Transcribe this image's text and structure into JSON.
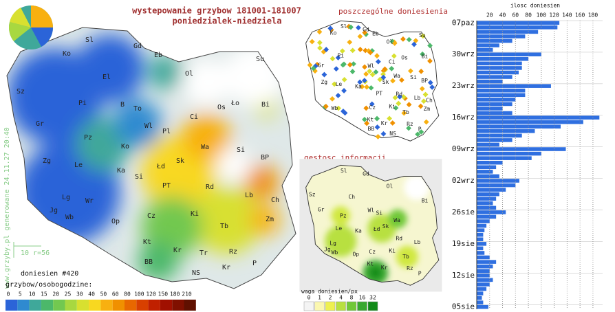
{
  "header": {
    "title": "wystepowanie grzybow 181001-181007",
    "subtitle": "poniedzialek-niedziela"
  },
  "main_map": {
    "labels": [
      "Sl",
      "Gd",
      "Eb",
      "Su",
      "Ko",
      "Ol",
      "El",
      "Sz",
      "Pi",
      "B",
      "To",
      "Ło",
      "Os",
      "Bi",
      "Ci",
      "Gr",
      "Wl",
      "Pz",
      "Pl",
      "Ko",
      "Wa",
      "Si",
      "Zg",
      "Le",
      "Ka",
      "Sk",
      "Łd",
      "BP",
      "Si",
      "PT",
      "Rd",
      "Lg",
      "Wr",
      "Lb",
      "Ch",
      "Jg",
      "Wb",
      "Op",
      "Cz",
      "Ki",
      "Tb",
      "Zm",
      "Kt",
      "Kr",
      "Rz",
      "Tr",
      "BB",
      "NS",
      "Kr",
      "P"
    ],
    "side_note": "www.grzyby.pl generowane 24.11.27 20:40",
    "scale_note": "10 r=56",
    "reports": "doniesien #420"
  },
  "legend": {
    "title": "grzybow/osobogodzine:",
    "ticks": [
      0,
      5,
      10,
      15,
      20,
      25,
      30,
      40,
      50,
      60,
      80,
      100,
      120,
      150,
      180,
      210
    ],
    "colors": [
      "#2b64d8",
      "#2f8ad0",
      "#3fa89a",
      "#4cb86a",
      "#72c850",
      "#a8d840",
      "#d8e030",
      "#f8d820",
      "#f8b010",
      "#f09000",
      "#e86800",
      "#d84000",
      "#c02000",
      "#a01000",
      "#801000",
      "#601000"
    ]
  },
  "reports_map": {
    "title": "poszczególne doniesienia",
    "labels": [
      "Sl",
      "Gd",
      "Ko",
      "Eb",
      "Su",
      "Ol",
      "Pi",
      "Gr",
      "Ci",
      "Os",
      "Bi",
      "Wl",
      "Le",
      "Zg",
      "Sk",
      "Wa",
      "Si",
      "Ka",
      "PT",
      "BP",
      "Rd",
      "Lb",
      "Ch",
      "Wb",
      "Cz",
      "Ki",
      "Tb",
      "Zm",
      "Kt",
      "BB",
      "Kr",
      "Rz",
      "NS",
      "P"
    ]
  },
  "density_map": {
    "title": "gestosc informacji",
    "labels": [
      "Sl",
      "Gd",
      "Ol",
      "Ch",
      "Sz",
      "Bi",
      "Gr",
      "Pz",
      "Wl",
      "Si",
      "Wa",
      "Le",
      "Ka",
      "Sk",
      "Łd",
      "Rd",
      "Lg",
      "Wb",
      "Jg",
      "Op",
      "Cz",
      "Ki",
      "Lb",
      "Kt",
      "Tb",
      "Kr",
      "Rz",
      "P"
    ],
    "legend_title": "waga doniesien/px",
    "ticks": [
      0,
      1,
      2,
      4,
      8,
      16,
      32
    ],
    "colors": [
      "#f4f4f4",
      "#fbf7b0",
      "#eef050",
      "#b8e040",
      "#70c838",
      "#38a830",
      "#108a18"
    ]
  },
  "chart_data": {
    "type": "bar",
    "orientation": "horizontal",
    "title": "ilosc doniesien",
    "color": "#2f6fe0",
    "categories": [
      "07paz",
      null,
      null,
      null,
      null,
      null,
      null,
      "30wrz",
      null,
      null,
      null,
      null,
      null,
      null,
      "23wrz",
      null,
      null,
      null,
      null,
      null,
      null,
      "16wrz",
      null,
      null,
      null,
      null,
      null,
      null,
      "09wrz",
      null,
      null,
      null,
      null,
      null,
      null,
      "02wrz",
      null,
      null,
      null,
      null,
      null,
      null,
      "26sie",
      null,
      null,
      null,
      null,
      null,
      null,
      "19sie",
      null,
      null,
      null,
      null,
      null,
      null,
      "12sie",
      null,
      null,
      null,
      null,
      null,
      null,
      "05sie"
    ],
    "values": [
      128,
      125,
      95,
      75,
      55,
      35,
      25,
      100,
      80,
      70,
      70,
      65,
      55,
      40,
      115,
      75,
      75,
      60,
      55,
      40,
      55,
      190,
      165,
      130,
      90,
      70,
      55,
      35,
      138,
      100,
      85,
      40,
      30,
      25,
      35,
      66,
      60,
      45,
      35,
      30,
      25,
      30,
      45,
      30,
      20,
      15,
      12,
      10,
      10,
      15,
      10,
      12,
      20,
      30,
      25,
      20,
      20,
      25,
      20,
      15,
      10,
      8,
      10,
      18
    ],
    "xlim": [
      0,
      195
    ],
    "xticks": [
      20,
      40,
      60,
      80,
      100,
      120,
      140,
      160,
      180
    ],
    "grid": true
  }
}
